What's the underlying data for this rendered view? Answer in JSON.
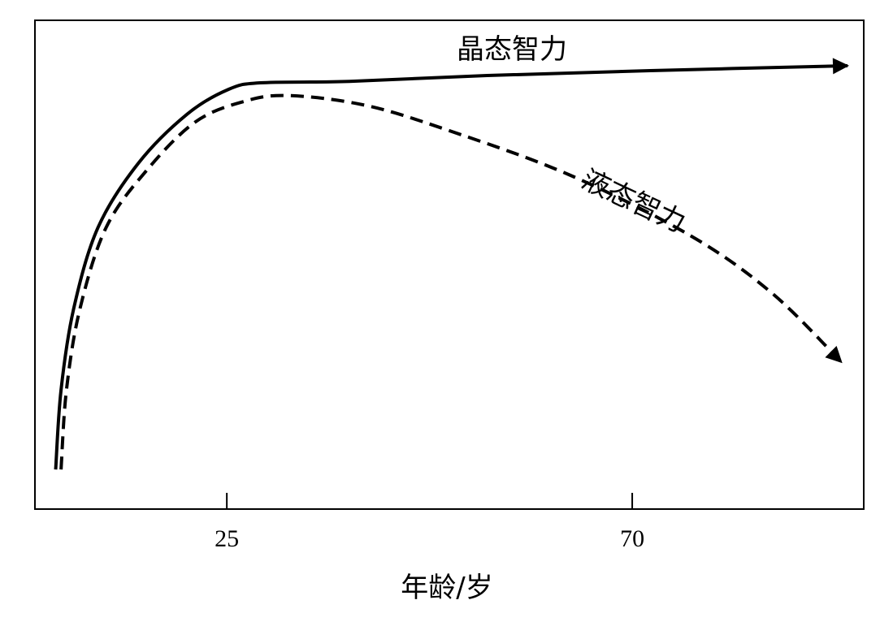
{
  "chart_data": {
    "type": "line",
    "xlabel": "年龄/岁",
    "xlim": [
      3.7,
      95.7
    ],
    "xticks": [
      25,
      70
    ],
    "ylim": [
      0,
      100
    ],
    "series": [
      {
        "name": "晶态智力",
        "color": "#000000",
        "style": "solid",
        "x": [
          6.0,
          6.6,
          8.0,
          10.7,
          15.2,
          20.6,
          25.1,
          28.7,
          38.6,
          53.9,
          72.0,
          93.9
        ],
        "values": [
          8.1,
          24.4,
          41.0,
          57.6,
          70.8,
          80.8,
          85.8,
          87.2,
          87.5,
          88.7,
          89.7,
          90.7
        ]
      },
      {
        "name": "液态智力",
        "color": "#000000",
        "style": "dashed",
        "x": [
          6.6,
          7.2,
          8.7,
          11.6,
          16.1,
          21.5,
          26.9,
          31.9,
          40.4,
          49.4,
          63.0,
          76.5,
          85.5,
          93.2
        ],
        "values": [
          8.1,
          24.4,
          41.0,
          57.6,
          69.3,
          79.2,
          83.4,
          84.6,
          82.6,
          77.6,
          68.4,
          55.9,
          44.2,
          30.1
        ]
      }
    ]
  }
}
